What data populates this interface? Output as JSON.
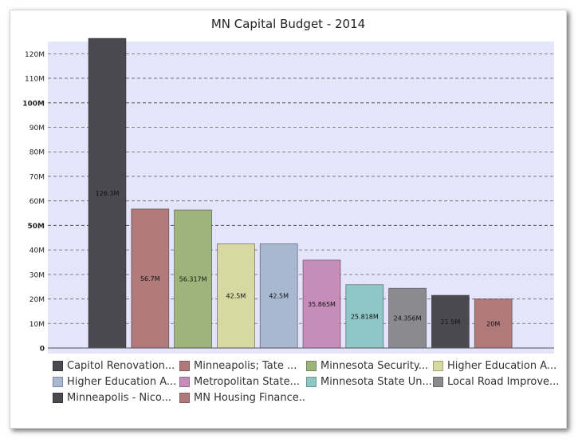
{
  "chart_data": {
    "type": "bar",
    "title": "MN Capital Budget - 2014",
    "xlabel": "",
    "ylabel": "",
    "ylim": [
      0,
      125
    ],
    "y_ticks": [
      0,
      10,
      20,
      30,
      40,
      50,
      60,
      70,
      80,
      90,
      100,
      110,
      120
    ],
    "y_tick_labels": [
      "0",
      "10M",
      "20M",
      "30M",
      "40M",
      "50M",
      "60M",
      "70M",
      "80M",
      "90M",
      "100M",
      "110M",
      "120M"
    ],
    "bold_ticks": [
      0,
      50,
      100
    ],
    "series": [
      {
        "name": "Capitol Renovation...",
        "value": 126.3,
        "label": "126.3M",
        "color": "#4a4950"
      },
      {
        "name": "Minneapolis; Tate ...",
        "value": 56.7,
        "label": "56.7M",
        "color": "#b07a7a"
      },
      {
        "name": "Minnesota Security...",
        "value": 56.317,
        "label": "56.317M",
        "color": "#9db57b"
      },
      {
        "name": "Higher Education A...",
        "value": 42.5,
        "label": "42.5M",
        "color": "#d8d8a2"
      },
      {
        "name": "Higher Education A...",
        "value": 42.5,
        "label": "42.5M",
        "color": "#a8b8d0"
      },
      {
        "name": "Metropolitan State...",
        "value": 35.865,
        "label": "35.865M",
        "color": "#c68cba"
      },
      {
        "name": "Minnesota State Un...",
        "value": 25.818,
        "label": "25.818M",
        "color": "#8ec7c6"
      },
      {
        "name": "Local Road Improve...",
        "value": 24.356,
        "label": "24.356M",
        "color": "#8b8a8e"
      },
      {
        "name": "Minneapolis - Nico...",
        "value": 21.5,
        "label": "21.5M",
        "color": "#4a4950"
      },
      {
        "name": "MN Housing Finance...",
        "value": 20,
        "label": "20M",
        "color": "#b07a7a"
      }
    ],
    "colors": {
      "plot_background": "#e4e4fa",
      "gridline": "#666666"
    },
    "grid": true,
    "legend_position": "bottom"
  }
}
